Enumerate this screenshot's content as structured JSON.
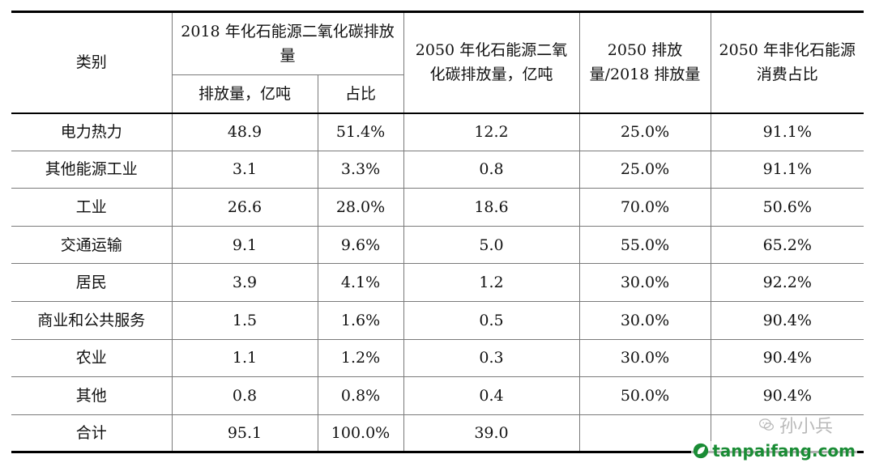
{
  "table": {
    "header": {
      "category": "类别",
      "group_2018": "2018 年化石能源二氧化碳排放量",
      "sub_emission": "排放量，亿吨",
      "sub_share": "占比",
      "col_2050_emission": "2050 年化石能源二氧化碳排放量，亿吨",
      "col_ratio": "2050 排放量/2018 排放量",
      "col_nonfossil": "2050 年非化石能源消费占比"
    },
    "rows": [
      {
        "category": "电力热力",
        "emission_2018": "48.9",
        "share_2018": "51.4%",
        "emission_2050": "12.2",
        "ratio": "25.0%",
        "nonfossil": "91.1%"
      },
      {
        "category": "其他能源工业",
        "emission_2018": "3.1",
        "share_2018": "3.3%",
        "emission_2050": "0.8",
        "ratio": "25.0%",
        "nonfossil": "91.1%"
      },
      {
        "category": "工业",
        "emission_2018": "26.6",
        "share_2018": "28.0%",
        "emission_2050": "18.6",
        "ratio": "70.0%",
        "nonfossil": "50.6%"
      },
      {
        "category": "交通运输",
        "emission_2018": "9.1",
        "share_2018": "9.6%",
        "emission_2050": "5.0",
        "ratio": "55.0%",
        "nonfossil": "65.2%"
      },
      {
        "category": "居民",
        "emission_2018": "3.9",
        "share_2018": "4.1%",
        "emission_2050": "1.2",
        "ratio": "30.0%",
        "nonfossil": "92.2%"
      },
      {
        "category": "商业和公共服务",
        "emission_2018": "1.5",
        "share_2018": "1.6%",
        "emission_2050": "0.5",
        "ratio": "30.0%",
        "nonfossil": "90.4%"
      },
      {
        "category": "农业",
        "emission_2018": "1.1",
        "share_2018": "1.2%",
        "emission_2050": "0.3",
        "ratio": "30.0%",
        "nonfossil": "90.4%"
      },
      {
        "category": "其他",
        "emission_2018": "0.8",
        "share_2018": "0.8%",
        "emission_2050": "0.4",
        "ratio": "50.0%",
        "nonfossil": "90.4%"
      },
      {
        "category": "合计",
        "emission_2018": "95.1",
        "share_2018": "100.0%",
        "emission_2050": "39.0",
        "ratio": "",
        "nonfossil": ""
      }
    ]
  },
  "watermark": {
    "author": "孙小兵",
    "site": "tanpaifang.com",
    "wechat_icon": "wechat-icon",
    "site_icon": "leaf-icon",
    "site_color": "#1a8c35"
  }
}
